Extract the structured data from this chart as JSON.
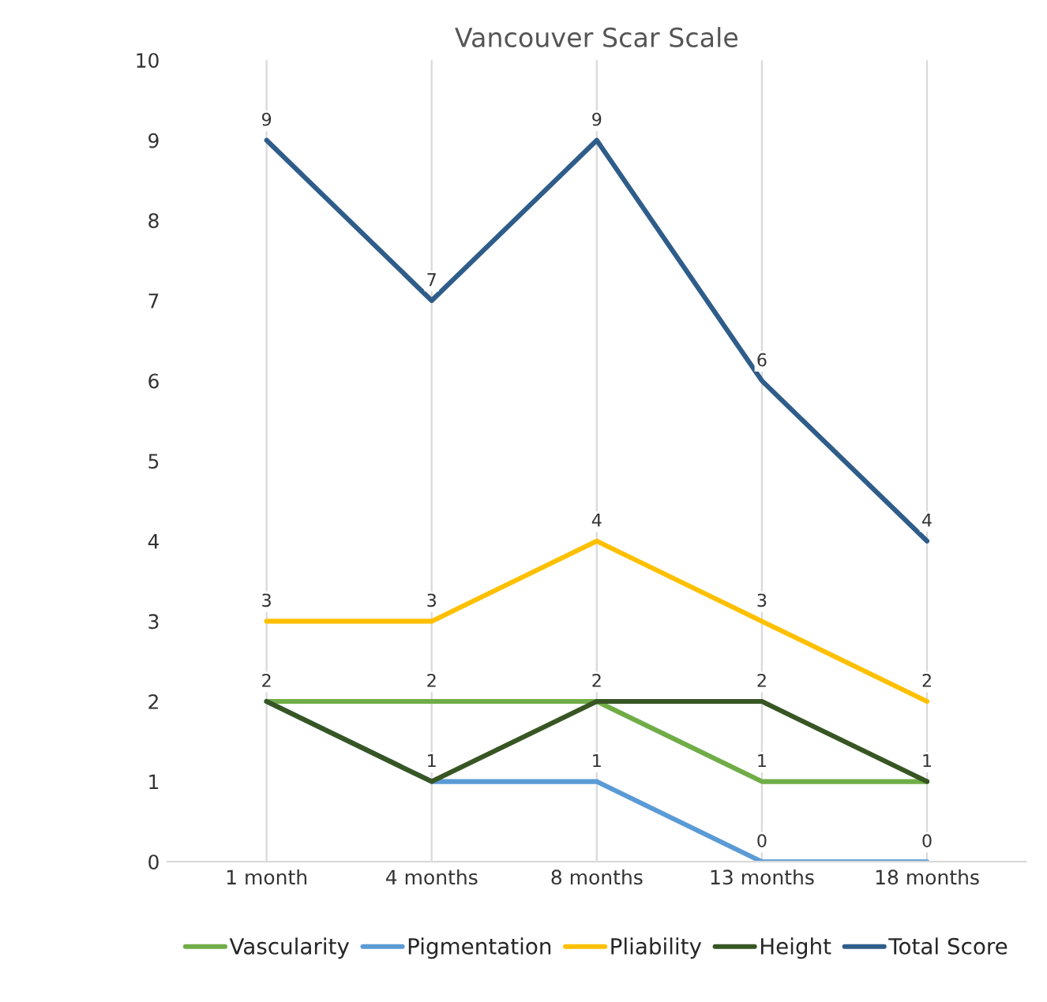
{
  "chart_data": {
    "type": "line",
    "title": "Vancouver Scar Scale",
    "categories": [
      "1 month",
      "4 months",
      "8 months",
      "13 months",
      "18 months"
    ],
    "series": [
      {
        "name": "Vascularity",
        "color": "#70ad47",
        "values": [
          2,
          2,
          2,
          1,
          1
        ],
        "value_labels": [
          "2",
          "2",
          "2",
          "1",
          "1"
        ]
      },
      {
        "name": "Pigmentation",
        "color": "#5b9bd5",
        "values": [
          2,
          1,
          1,
          0,
          0
        ],
        "value_labels": [
          null,
          "1",
          "1",
          "0",
          "0"
        ]
      },
      {
        "name": "Pliability",
        "color": "#ffc000",
        "values": [
          3,
          3,
          4,
          3,
          2
        ],
        "value_labels": [
          "3",
          "3",
          "4",
          "3",
          "2"
        ]
      },
      {
        "name": "Height",
        "color": "#375623",
        "values": [
          2,
          1,
          2,
          2,
          1
        ],
        "value_labels": [
          null,
          null,
          null,
          "2",
          null
        ]
      },
      {
        "name": "Total Score",
        "color": "#2f5d8a",
        "values": [
          9,
          7,
          9,
          6,
          4
        ],
        "value_labels": [
          "9",
          "7",
          "9",
          "6",
          "4"
        ]
      }
    ],
    "ylim": [
      0,
      10
    ],
    "yticks": [
      0,
      1,
      2,
      3,
      4,
      5,
      6,
      7,
      8,
      9,
      10
    ],
    "grid": "x",
    "legend": "bottom",
    "marker": "none",
    "line_style": "solid"
  }
}
